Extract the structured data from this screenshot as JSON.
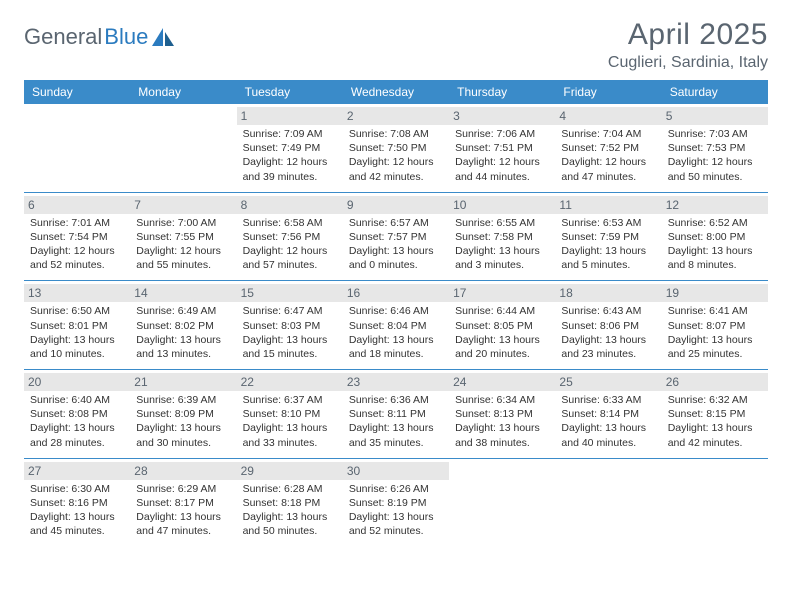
{
  "logo": {
    "text1": "General",
    "text2": "Blue"
  },
  "title": "April 2025",
  "location": "Cuglieri, Sardinia, Italy",
  "colors": {
    "header_bg": "#3a8bc9",
    "header_text": "#ffffff",
    "daynum_bg": "#e7e7e7",
    "daynum_text": "#5a6570",
    "cell_border": "#3a8bc9",
    "body_text": "#333333",
    "title_text": "#5a6570"
  },
  "weekdays": [
    "Sunday",
    "Monday",
    "Tuesday",
    "Wednesday",
    "Thursday",
    "Friday",
    "Saturday"
  ],
  "weeks": [
    [
      null,
      null,
      {
        "n": "1",
        "sr": "7:09 AM",
        "ss": "7:49 PM",
        "dl": "12 hours and 39 minutes."
      },
      {
        "n": "2",
        "sr": "7:08 AM",
        "ss": "7:50 PM",
        "dl": "12 hours and 42 minutes."
      },
      {
        "n": "3",
        "sr": "7:06 AM",
        "ss": "7:51 PM",
        "dl": "12 hours and 44 minutes."
      },
      {
        "n": "4",
        "sr": "7:04 AM",
        "ss": "7:52 PM",
        "dl": "12 hours and 47 minutes."
      },
      {
        "n": "5",
        "sr": "7:03 AM",
        "ss": "7:53 PM",
        "dl": "12 hours and 50 minutes."
      }
    ],
    [
      {
        "n": "6",
        "sr": "7:01 AM",
        "ss": "7:54 PM",
        "dl": "12 hours and 52 minutes."
      },
      {
        "n": "7",
        "sr": "7:00 AM",
        "ss": "7:55 PM",
        "dl": "12 hours and 55 minutes."
      },
      {
        "n": "8",
        "sr": "6:58 AM",
        "ss": "7:56 PM",
        "dl": "12 hours and 57 minutes."
      },
      {
        "n": "9",
        "sr": "6:57 AM",
        "ss": "7:57 PM",
        "dl": "13 hours and 0 minutes."
      },
      {
        "n": "10",
        "sr": "6:55 AM",
        "ss": "7:58 PM",
        "dl": "13 hours and 3 minutes."
      },
      {
        "n": "11",
        "sr": "6:53 AM",
        "ss": "7:59 PM",
        "dl": "13 hours and 5 minutes."
      },
      {
        "n": "12",
        "sr": "6:52 AM",
        "ss": "8:00 PM",
        "dl": "13 hours and 8 minutes."
      }
    ],
    [
      {
        "n": "13",
        "sr": "6:50 AM",
        "ss": "8:01 PM",
        "dl": "13 hours and 10 minutes."
      },
      {
        "n": "14",
        "sr": "6:49 AM",
        "ss": "8:02 PM",
        "dl": "13 hours and 13 minutes."
      },
      {
        "n": "15",
        "sr": "6:47 AM",
        "ss": "8:03 PM",
        "dl": "13 hours and 15 minutes."
      },
      {
        "n": "16",
        "sr": "6:46 AM",
        "ss": "8:04 PM",
        "dl": "13 hours and 18 minutes."
      },
      {
        "n": "17",
        "sr": "6:44 AM",
        "ss": "8:05 PM",
        "dl": "13 hours and 20 minutes."
      },
      {
        "n": "18",
        "sr": "6:43 AM",
        "ss": "8:06 PM",
        "dl": "13 hours and 23 minutes."
      },
      {
        "n": "19",
        "sr": "6:41 AM",
        "ss": "8:07 PM",
        "dl": "13 hours and 25 minutes."
      }
    ],
    [
      {
        "n": "20",
        "sr": "6:40 AM",
        "ss": "8:08 PM",
        "dl": "13 hours and 28 minutes."
      },
      {
        "n": "21",
        "sr": "6:39 AM",
        "ss": "8:09 PM",
        "dl": "13 hours and 30 minutes."
      },
      {
        "n": "22",
        "sr": "6:37 AM",
        "ss": "8:10 PM",
        "dl": "13 hours and 33 minutes."
      },
      {
        "n": "23",
        "sr": "6:36 AM",
        "ss": "8:11 PM",
        "dl": "13 hours and 35 minutes."
      },
      {
        "n": "24",
        "sr": "6:34 AM",
        "ss": "8:13 PM",
        "dl": "13 hours and 38 minutes."
      },
      {
        "n": "25",
        "sr": "6:33 AM",
        "ss": "8:14 PM",
        "dl": "13 hours and 40 minutes."
      },
      {
        "n": "26",
        "sr": "6:32 AM",
        "ss": "8:15 PM",
        "dl": "13 hours and 42 minutes."
      }
    ],
    [
      {
        "n": "27",
        "sr": "6:30 AM",
        "ss": "8:16 PM",
        "dl": "13 hours and 45 minutes."
      },
      {
        "n": "28",
        "sr": "6:29 AM",
        "ss": "8:17 PM",
        "dl": "13 hours and 47 minutes."
      },
      {
        "n": "29",
        "sr": "6:28 AM",
        "ss": "8:18 PM",
        "dl": "13 hours and 50 minutes."
      },
      {
        "n": "30",
        "sr": "6:26 AM",
        "ss": "8:19 PM",
        "dl": "13 hours and 52 minutes."
      },
      null,
      null,
      null
    ]
  ],
  "labels": {
    "sunrise": "Sunrise:",
    "sunset": "Sunset:",
    "daylight": "Daylight:"
  }
}
